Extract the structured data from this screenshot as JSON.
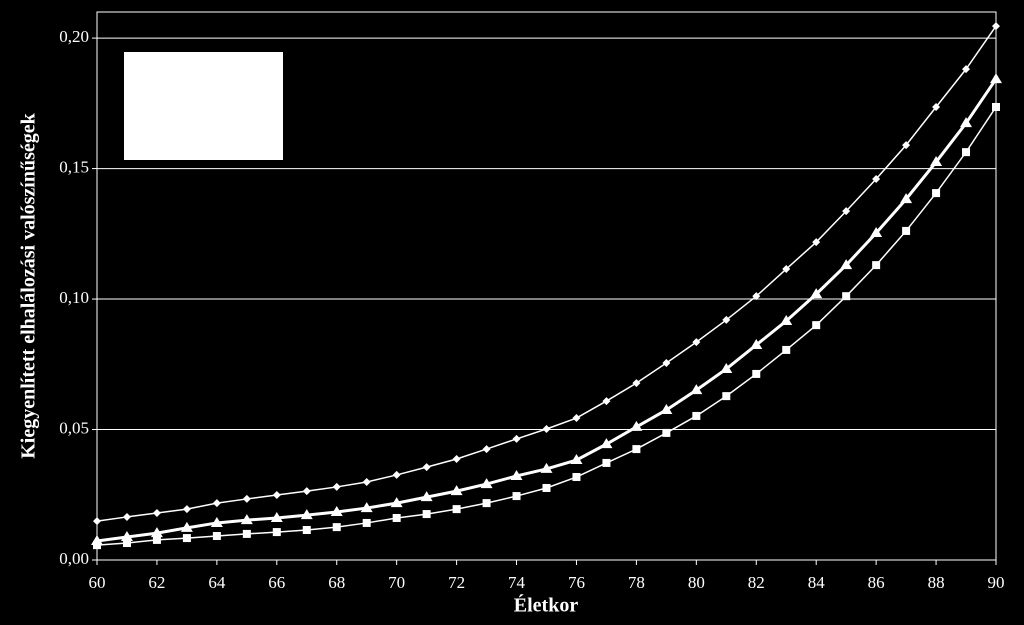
{
  "chart_data": {
    "type": "line",
    "x_label": "Életkor",
    "y_label": "Kiegyenlített elhalálozási valószínűségek",
    "x": [
      60,
      61,
      62,
      63,
      64,
      65,
      66,
      67,
      68,
      69,
      70,
      71,
      72,
      73,
      74,
      75,
      76,
      77,
      78,
      79,
      80,
      81,
      82,
      83,
      84,
      85,
      86,
      87,
      88,
      89,
      90
    ],
    "xlim": [
      60,
      90
    ],
    "xticks": [
      60,
      62,
      64,
      66,
      68,
      70,
      72,
      74,
      76,
      78,
      80,
      82,
      84,
      86,
      88,
      90
    ],
    "ylim": [
      0,
      0.21
    ],
    "yticks": [
      {
        "value": 0,
        "label": "0,00"
      },
      {
        "value": 0.05,
        "label": "0,05"
      },
      {
        "value": 0.1,
        "label": "0,10"
      },
      {
        "value": 0.15,
        "label": "0,15"
      },
      {
        "value": 0.2,
        "label": "0,20"
      }
    ],
    "grid": true,
    "series": [
      {
        "color": "#ffffff",
        "marker": "diamond",
        "values": [
          0.0149,
          0.0165,
          0.018,
          0.0195,
          0.0218,
          0.0234,
          0.0249,
          0.0264,
          0.028,
          0.0299,
          0.0326,
          0.0356,
          0.0387,
          0.0425,
          0.0464,
          0.0502,
          0.0544,
          0.0609,
          0.0678,
          0.0755,
          0.0835,
          0.092,
          0.1011,
          0.1115,
          0.1218,
          0.1337,
          0.146,
          0.159,
          0.1736,
          0.1881,
          0.2046
        ]
      },
      {
        "color": "#ffffff",
        "marker": "triangle",
        "values": [
          0.0073,
          0.0088,
          0.0103,
          0.0123,
          0.0142,
          0.0153,
          0.0161,
          0.0172,
          0.0184,
          0.0199,
          0.0218,
          0.0241,
          0.0264,
          0.0291,
          0.0322,
          0.0349,
          0.0383,
          0.0444,
          0.051,
          0.0575,
          0.0651,
          0.0732,
          0.0824,
          0.0916,
          0.1019,
          0.113,
          0.1253,
          0.1383,
          0.1525,
          0.1674,
          0.1843
        ]
      },
      {
        "color": "#ffffff",
        "marker": "square",
        "values": [
          0.0057,
          0.0065,
          0.0077,
          0.0084,
          0.0092,
          0.01,
          0.0107,
          0.0115,
          0.0126,
          0.0142,
          0.0161,
          0.0176,
          0.0195,
          0.0218,
          0.0245,
          0.0276,
          0.0318,
          0.0372,
          0.0425,
          0.0487,
          0.0552,
          0.0628,
          0.0713,
          0.0805,
          0.09,
          0.1011,
          0.113,
          0.1261,
          0.1406,
          0.1563,
          0.1736
        ]
      }
    ]
  }
}
